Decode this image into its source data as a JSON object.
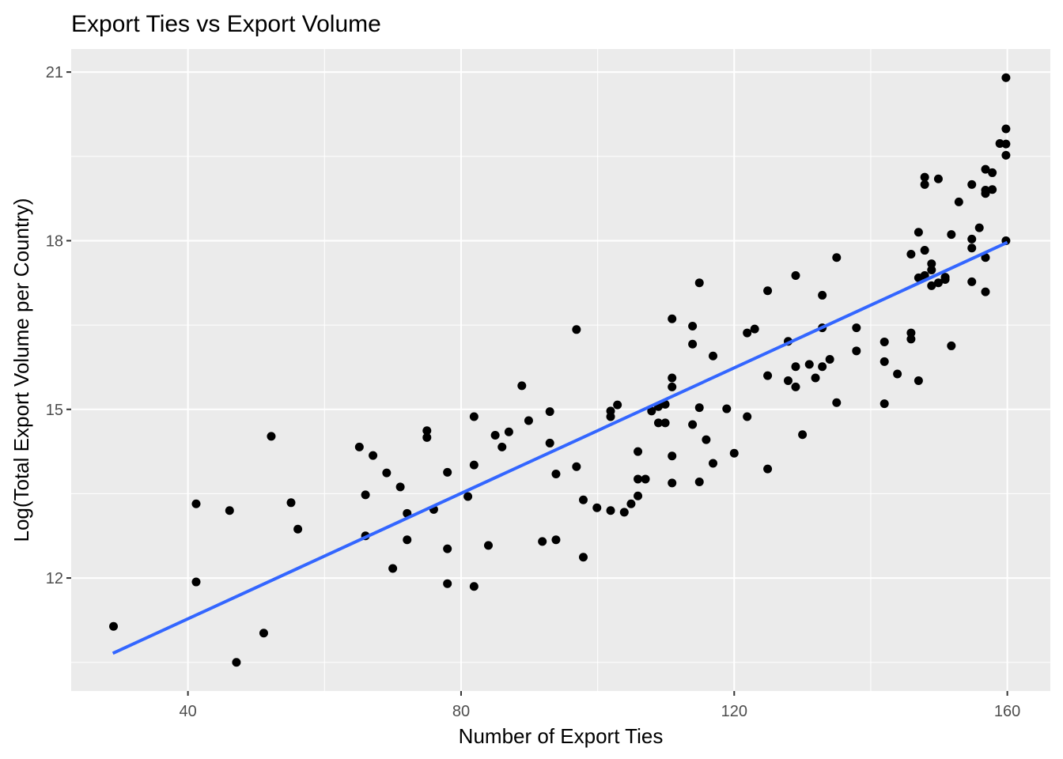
{
  "chart_data": {
    "type": "scatter",
    "title": "Export Ties vs Export Volume",
    "x_label": "Number of Export Ties",
    "y_label": "Log(Total Export Volume per Country)",
    "xlim": [
      22.9,
      166.3
    ],
    "ylim": [
      9.99,
      21.41
    ],
    "xticks": [
      40,
      80,
      120,
      160
    ],
    "yticks": [
      12,
      15,
      18,
      21
    ],
    "grid": true,
    "color": "#000000",
    "x": [
      29.1,
      41.2,
      41.2,
      46.1,
      47.1,
      51.1,
      52.2,
      55.1,
      56.1,
      65.1,
      66.0,
      66.0,
      67.1,
      69.1,
      70.0,
      71.1,
      72.1,
      72.1,
      75.0,
      75.0,
      76.0,
      78.0,
      78.0,
      78.0,
      81.0,
      81.9,
      81.9,
      81.9,
      84.0,
      85.0,
      86.0,
      87.0,
      88.9,
      89.9,
      91.9,
      93.0,
      93.0,
      93.9,
      93.9,
      96.9,
      96.9,
      97.9,
      97.9,
      99.9,
      101.9,
      101.9,
      101.9,
      102.9,
      103.9,
      104.9,
      105.9,
      105.9,
      105.9,
      107.0,
      107.9,
      108.9,
      108.9,
      109.9,
      109.9,
      110.9,
      110.9,
      110.9,
      110.9,
      110.9,
      113.9,
      113.9,
      113.9,
      114.9,
      114.9,
      114.9,
      115.9,
      116.9,
      116.9,
      118.9,
      120.0,
      121.9,
      121.9,
      123.0,
      124.9,
      124.9,
      124.9,
      127.9,
      127.9,
      129.0,
      129.0,
      129.0,
      130.0,
      131.0,
      131.9,
      132.9,
      132.9,
      132.9,
      134.0,
      135.0,
      135.0,
      137.9,
      137.9,
      142.0,
      142.0,
      142.0,
      143.9,
      145.9,
      145.9,
      145.9,
      147.0,
      147.0,
      147.0,
      147.9,
      147.9,
      147.9,
      147.9,
      148.9,
      148.9,
      148.9,
      149.9,
      149.9,
      150.9,
      150.9,
      151.8,
      151.8,
      152.9,
      154.8,
      154.8,
      154.8,
      154.8,
      155.9,
      156.8,
      156.8,
      156.8,
      156.8,
      156.8,
      157.8,
      157.8,
      158.9,
      159.8,
      159.8,
      159.8,
      159.8,
      159.8
    ],
    "y": [
      11.14,
      13.32,
      11.93,
      13.2,
      10.5,
      11.02,
      14.52,
      13.34,
      12.87,
      14.33,
      13.48,
      12.75,
      14.18,
      13.87,
      12.17,
      13.62,
      13.15,
      12.68,
      14.62,
      14.5,
      13.22,
      13.88,
      12.52,
      11.9,
      13.45,
      14.87,
      14.01,
      11.85,
      12.58,
      14.54,
      14.33,
      14.6,
      15.42,
      14.8,
      12.65,
      14.96,
      14.4,
      13.85,
      12.68,
      16.42,
      13.98,
      13.39,
      12.37,
      13.25,
      13.2,
      14.97,
      14.87,
      15.08,
      13.17,
      13.32,
      14.25,
      13.76,
      13.46,
      13.76,
      14.97,
      14.76,
      15.05,
      14.76,
      15.09,
      16.61,
      15.56,
      15.4,
      14.17,
      13.69,
      16.48,
      16.16,
      14.73,
      17.25,
      15.03,
      13.71,
      14.46,
      15.95,
      14.04,
      15.01,
      14.22,
      16.36,
      14.87,
      16.43,
      17.11,
      15.6,
      13.94,
      16.21,
      15.51,
      17.38,
      15.76,
      15.4,
      14.55,
      15.8,
      15.56,
      17.03,
      16.45,
      15.76,
      15.89,
      17.7,
      15.12,
      16.45,
      16.04,
      16.2,
      15.85,
      15.1,
      15.63,
      17.76,
      16.36,
      16.25,
      18.15,
      17.34,
      15.51,
      19.13,
      19.0,
      17.83,
      17.38,
      17.59,
      17.48,
      17.2,
      19.1,
      17.25,
      17.35,
      17.31,
      18.11,
      16.13,
      18.69,
      19.0,
      18.03,
      17.87,
      17.27,
      18.23,
      19.27,
      18.9,
      18.84,
      17.7,
      17.09,
      19.21,
      18.91,
      19.73,
      20.9,
      19.99,
      19.72,
      19.52,
      18.0
    ],
    "trend": {
      "color": "#3366ff",
      "x": [
        29,
        160
      ],
      "y": [
        10.66,
        17.97
      ]
    }
  }
}
